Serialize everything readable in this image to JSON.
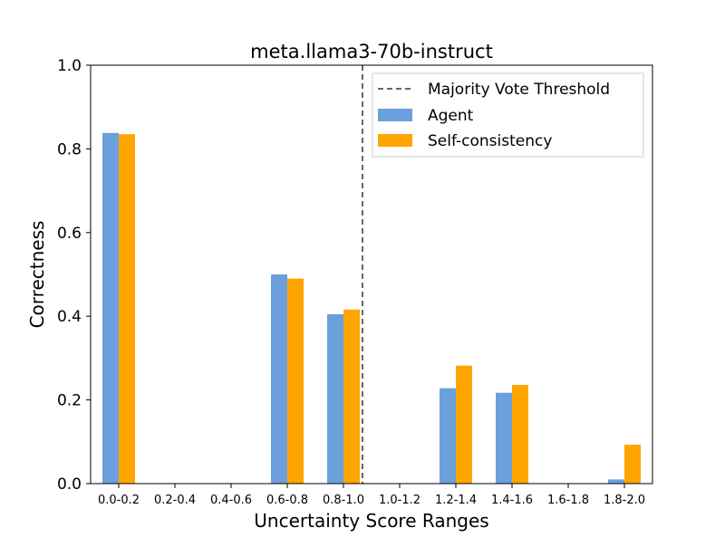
{
  "chart_data": {
    "type": "bar",
    "title": "meta.llama3-70b-instruct",
    "xlabel": "Uncertainty Score Ranges",
    "ylabel": "Correctness",
    "ylim": [
      0,
      1.0
    ],
    "yticks": [
      "0.0",
      "0.2",
      "0.4",
      "0.6",
      "0.8",
      "1.0"
    ],
    "categories": [
      "0.0-0.2",
      "0.2-0.4",
      "0.4-0.6",
      "0.6-0.8",
      "0.8-1.0",
      "1.0-1.2",
      "1.2-1.4",
      "1.4-1.6",
      "1.6-1.8",
      "1.8-2.0"
    ],
    "series": [
      {
        "name": "Agent",
        "color": "#6ca0dc",
        "values": [
          0.838,
          null,
          null,
          0.5,
          0.405,
          null,
          0.228,
          0.217,
          null,
          0.01
        ]
      },
      {
        "name": "Self-consistency",
        "color": "#ffa500",
        "values": [
          0.835,
          null,
          null,
          0.49,
          0.416,
          null,
          0.282,
          0.236,
          null,
          0.093
        ]
      }
    ],
    "reference_line": {
      "label": "Majority Vote Threshold",
      "axis": "x",
      "position_category_boundary": "0.8-1.0 / 1.0-1.2",
      "style": "dashed",
      "color": "#666666"
    },
    "legend_placement": "top-right",
    "grid": false
  }
}
